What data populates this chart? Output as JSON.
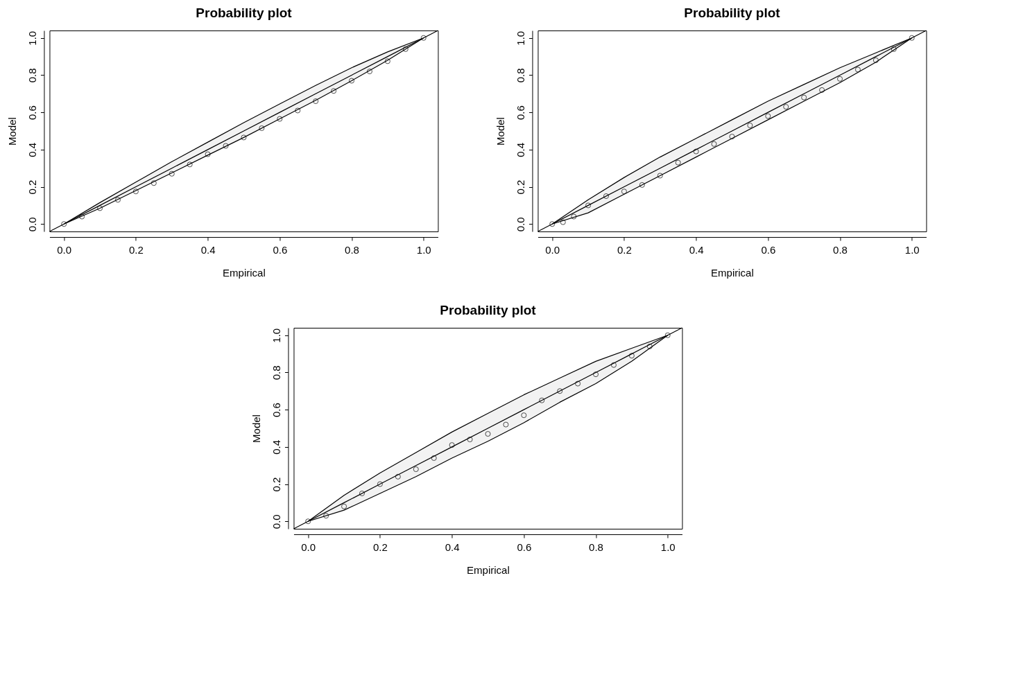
{
  "chart_data": [
    {
      "type": "scatter",
      "title": "Probability plot",
      "xlabel": "Empirical",
      "ylabel": "Model",
      "xlim": [
        -0.04,
        1.04
      ],
      "ylim": [
        -0.04,
        1.04
      ],
      "xticks": [
        {
          "value": 0,
          "label": "0.0"
        },
        {
          "value": 0.2,
          "label": "0.2"
        },
        {
          "value": 0.4,
          "label": "0.4"
        },
        {
          "value": 0.6,
          "label": "0.6"
        },
        {
          "value": 0.8,
          "label": "0.8"
        },
        {
          "value": 1,
          "label": "1.0"
        }
      ],
      "yticks": [
        {
          "value": 0,
          "label": "0.0"
        },
        {
          "value": 0.2,
          "label": "0.2"
        },
        {
          "value": 0.4,
          "label": "0.4"
        },
        {
          "value": 0.6,
          "label": "0.6"
        },
        {
          "value": 0.8,
          "label": "0.8"
        },
        {
          "value": 1,
          "label": "1.0"
        }
      ],
      "series": [
        {
          "marker": "circle",
          "color": "#000000",
          "x": [
            0,
            0.05,
            0.1,
            0.15,
            0.2,
            0.25,
            0.3,
            0.35,
            0.4,
            0.45,
            0.5,
            0.55,
            0.6,
            0.65,
            0.7,
            0.75,
            0.8,
            0.85,
            0.9,
            0.95,
            1
          ],
          "values": [
            0,
            0.04,
            0.085,
            0.13,
            0.175,
            0.22,
            0.27,
            0.32,
            0.375,
            0.42,
            0.465,
            0.515,
            0.565,
            0.61,
            0.66,
            0.715,
            0.77,
            0.82,
            0.875,
            0.94,
            1
          ]
        },
        {
          "type": "line",
          "marker": "none",
          "color": "#000000",
          "line_style": "solid",
          "x": [
            -0.04,
            0,
            0.1,
            0.2,
            0.3,
            0.4,
            0.5,
            0.6,
            0.7,
            0.8,
            0.9,
            1,
            1.04
          ],
          "values": [
            -0.04,
            0,
            0.1,
            0.2,
            0.3,
            0.4,
            0.5,
            0.6,
            0.7,
            0.8,
            0.9,
            1,
            1.04
          ],
          "upper": [
            null,
            0,
            0.115,
            0.225,
            0.335,
            0.44,
            0.545,
            0.645,
            0.745,
            0.84,
            0.925,
            1,
            null
          ],
          "lower": [
            null,
            0,
            0.085,
            0.18,
            0.275,
            0.37,
            0.465,
            0.565,
            0.665,
            0.77,
            0.88,
            1,
            null
          ]
        }
      ]
    },
    {
      "type": "scatter",
      "title": "Probability plot",
      "xlabel": "Empirical",
      "ylabel": "Model",
      "xlim": [
        -0.04,
        1.04
      ],
      "ylim": [
        -0.04,
        1.04
      ],
      "xticks": [
        {
          "value": 0,
          "label": "0.0"
        },
        {
          "value": 0.2,
          "label": "0.2"
        },
        {
          "value": 0.4,
          "label": "0.4"
        },
        {
          "value": 0.6,
          "label": "0.6"
        },
        {
          "value": 0.8,
          "label": "0.8"
        },
        {
          "value": 1,
          "label": "1.0"
        }
      ],
      "yticks": [
        {
          "value": 0,
          "label": "0.0"
        },
        {
          "value": 0.2,
          "label": "0.2"
        },
        {
          "value": 0.4,
          "label": "0.4"
        },
        {
          "value": 0.6,
          "label": "0.6"
        },
        {
          "value": 0.8,
          "label": "0.8"
        },
        {
          "value": 1,
          "label": "1.0"
        }
      ],
      "series": [
        {
          "marker": "circle",
          "color": "#000000",
          "x": [
            0,
            0.03,
            0.06,
            0.1,
            0.15,
            0.2,
            0.25,
            0.3,
            0.35,
            0.4,
            0.45,
            0.5,
            0.55,
            0.6,
            0.65,
            0.7,
            0.75,
            0.8,
            0.85,
            0.9,
            0.95,
            1
          ],
          "values": [
            0,
            0.01,
            0.04,
            0.1,
            0.15,
            0.175,
            0.21,
            0.26,
            0.33,
            0.39,
            0.43,
            0.47,
            0.53,
            0.58,
            0.63,
            0.68,
            0.72,
            0.78,
            0.83,
            0.88,
            0.94,
            1
          ]
        },
        {
          "type": "line",
          "marker": "none",
          "color": "#000000",
          "line_style": "solid",
          "x": [
            -0.04,
            0,
            0.1,
            0.2,
            0.3,
            0.4,
            0.5,
            0.6,
            0.7,
            0.8,
            0.9,
            1,
            1.04
          ],
          "values": [
            -0.04,
            0,
            0.1,
            0.2,
            0.3,
            0.4,
            0.5,
            0.6,
            0.7,
            0.8,
            0.9,
            1,
            1.04
          ],
          "upper": [
            null,
            0,
            0.13,
            0.25,
            0.36,
            0.46,
            0.56,
            0.66,
            0.75,
            0.84,
            0.92,
            1,
            null
          ],
          "lower": [
            null,
            0,
            0.06,
            0.16,
            0.26,
            0.36,
            0.46,
            0.56,
            0.66,
            0.76,
            0.87,
            1,
            null
          ]
        }
      ]
    },
    {
      "type": "scatter",
      "title": "Probability plot",
      "xlabel": "Empirical",
      "ylabel": "Model",
      "xlim": [
        -0.04,
        1.04
      ],
      "ylim": [
        -0.04,
        1.04
      ],
      "xticks": [
        {
          "value": 0,
          "label": "0.0"
        },
        {
          "value": 0.2,
          "label": "0.2"
        },
        {
          "value": 0.4,
          "label": "0.4"
        },
        {
          "value": 0.6,
          "label": "0.6"
        },
        {
          "value": 0.8,
          "label": "0.8"
        },
        {
          "value": 1,
          "label": "1.0"
        }
      ],
      "yticks": [
        {
          "value": 0,
          "label": "0.0"
        },
        {
          "value": 0.2,
          "label": "0.2"
        },
        {
          "value": 0.4,
          "label": "0.4"
        },
        {
          "value": 0.6,
          "label": "0.6"
        },
        {
          "value": 0.8,
          "label": "0.8"
        },
        {
          "value": 1,
          "label": "1.0"
        }
      ],
      "series": [
        {
          "marker": "circle",
          "color": "#000000",
          "x": [
            0,
            0.05,
            0.1,
            0.15,
            0.2,
            0.25,
            0.3,
            0.35,
            0.4,
            0.45,
            0.5,
            0.55,
            0.6,
            0.65,
            0.7,
            0.75,
            0.8,
            0.85,
            0.9,
            0.95,
            1
          ],
          "values": [
            0,
            0.03,
            0.08,
            0.15,
            0.2,
            0.24,
            0.28,
            0.34,
            0.41,
            0.44,
            0.47,
            0.52,
            0.57,
            0.65,
            0.7,
            0.74,
            0.79,
            0.84,
            0.89,
            0.94,
            1
          ]
        },
        {
          "type": "line",
          "marker": "none",
          "color": "#000000",
          "line_style": "solid",
          "x": [
            -0.04,
            0,
            0.1,
            0.2,
            0.3,
            0.4,
            0.5,
            0.6,
            0.7,
            0.8,
            0.9,
            1,
            1.04
          ],
          "values": [
            -0.04,
            0,
            0.1,
            0.2,
            0.3,
            0.4,
            0.5,
            0.6,
            0.7,
            0.8,
            0.9,
            1,
            1.04
          ],
          "upper": [
            null,
            0,
            0.14,
            0.26,
            0.37,
            0.48,
            0.58,
            0.68,
            0.77,
            0.86,
            0.93,
            1,
            null
          ],
          "lower": [
            null,
            0,
            0.06,
            0.15,
            0.24,
            0.34,
            0.43,
            0.53,
            0.64,
            0.74,
            0.86,
            1,
            null
          ]
        }
      ]
    }
  ]
}
